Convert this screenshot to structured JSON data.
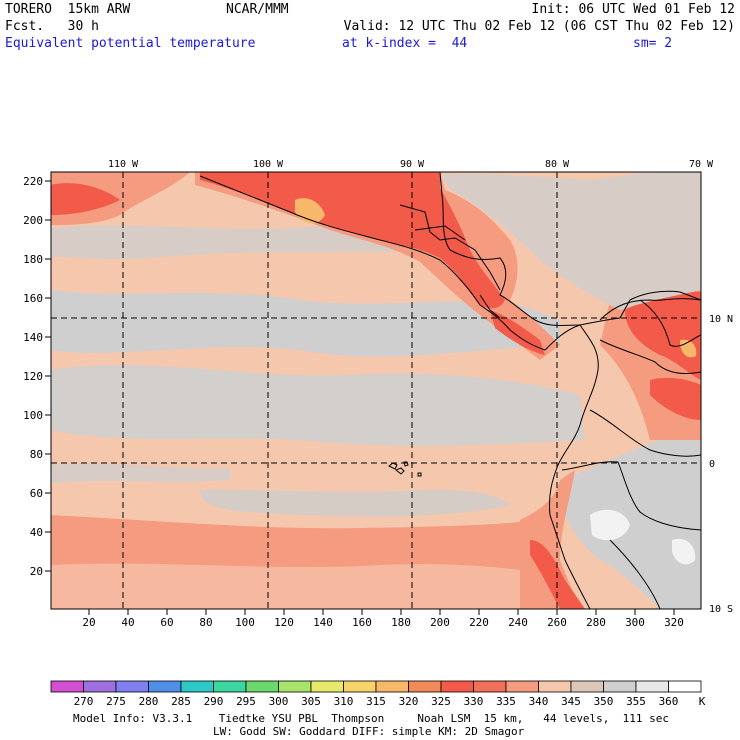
{
  "header": {
    "model": "TORERO  15km ARW",
    "org": "NCAR/MMM",
    "init": "Init: 06 UTC Wed 01 Feb 12",
    "fcst": "Fcst.   30 h",
    "valid": "Valid: 12 UTC Thu 02 Feb 12 (06 CST Thu 02 Feb 12)",
    "field": "Equivalent potential temperature",
    "level": "at k-index =  44",
    "smoothing": "sm= 2"
  },
  "map": {
    "top_lon_labels": [
      "110 W",
      "100 W",
      "90 W",
      "80 W",
      "70 W"
    ],
    "right_lat_labels": [
      "10 N",
      "0",
      "10 S"
    ],
    "left_grid_labels": [
      "220",
      "200",
      "180",
      "160",
      "140",
      "120",
      "100",
      "80",
      "60",
      "40",
      "20"
    ],
    "bottom_grid_labels": [
      "20",
      "40",
      "60",
      "80",
      "100",
      "120",
      "140",
      "160",
      "180",
      "200",
      "220",
      "240",
      "260",
      "280",
      "300",
      "320"
    ],
    "field_colors": {
      "base": "#f5c8ae",
      "cool": "#cfcfcf",
      "warm": "#f59b80",
      "hot": "#f25a4a",
      "hottest": "#f7b86a",
      "coldest": "#f2f2f2"
    },
    "coastline_color": "#000000"
  },
  "colorbar": {
    "labels": [
      "270",
      "275",
      "280",
      "285",
      "290",
      "295",
      "300",
      "305",
      "310",
      "315",
      "320",
      "325",
      "330",
      "335",
      "340",
      "345",
      "350",
      "355",
      "360"
    ],
    "unit": "K",
    "colors": [
      "#d24fd2",
      "#9f6fe0",
      "#7f7ff0",
      "#4f8fe8",
      "#2fc8c8",
      "#3ad8a0",
      "#6ad86a",
      "#a8e36a",
      "#e8e86a",
      "#f8d36a",
      "#f7b86a",
      "#f28a5a",
      "#f25a4a",
      "#f0705a",
      "#f59b80",
      "#f5c8ae",
      "#dcc7b8",
      "#cfcfcf",
      "#e8e8e8",
      "#ffffff"
    ]
  },
  "footer": {
    "line1": "Model Info: V3.3.1    Tiedtke YSU PBL  Thompson     Noah LSM  15 km,   44 levels,  111 sec",
    "line2": "LW: Godd SW: Goddard DIFF: simple KM: 2D Smagor"
  }
}
